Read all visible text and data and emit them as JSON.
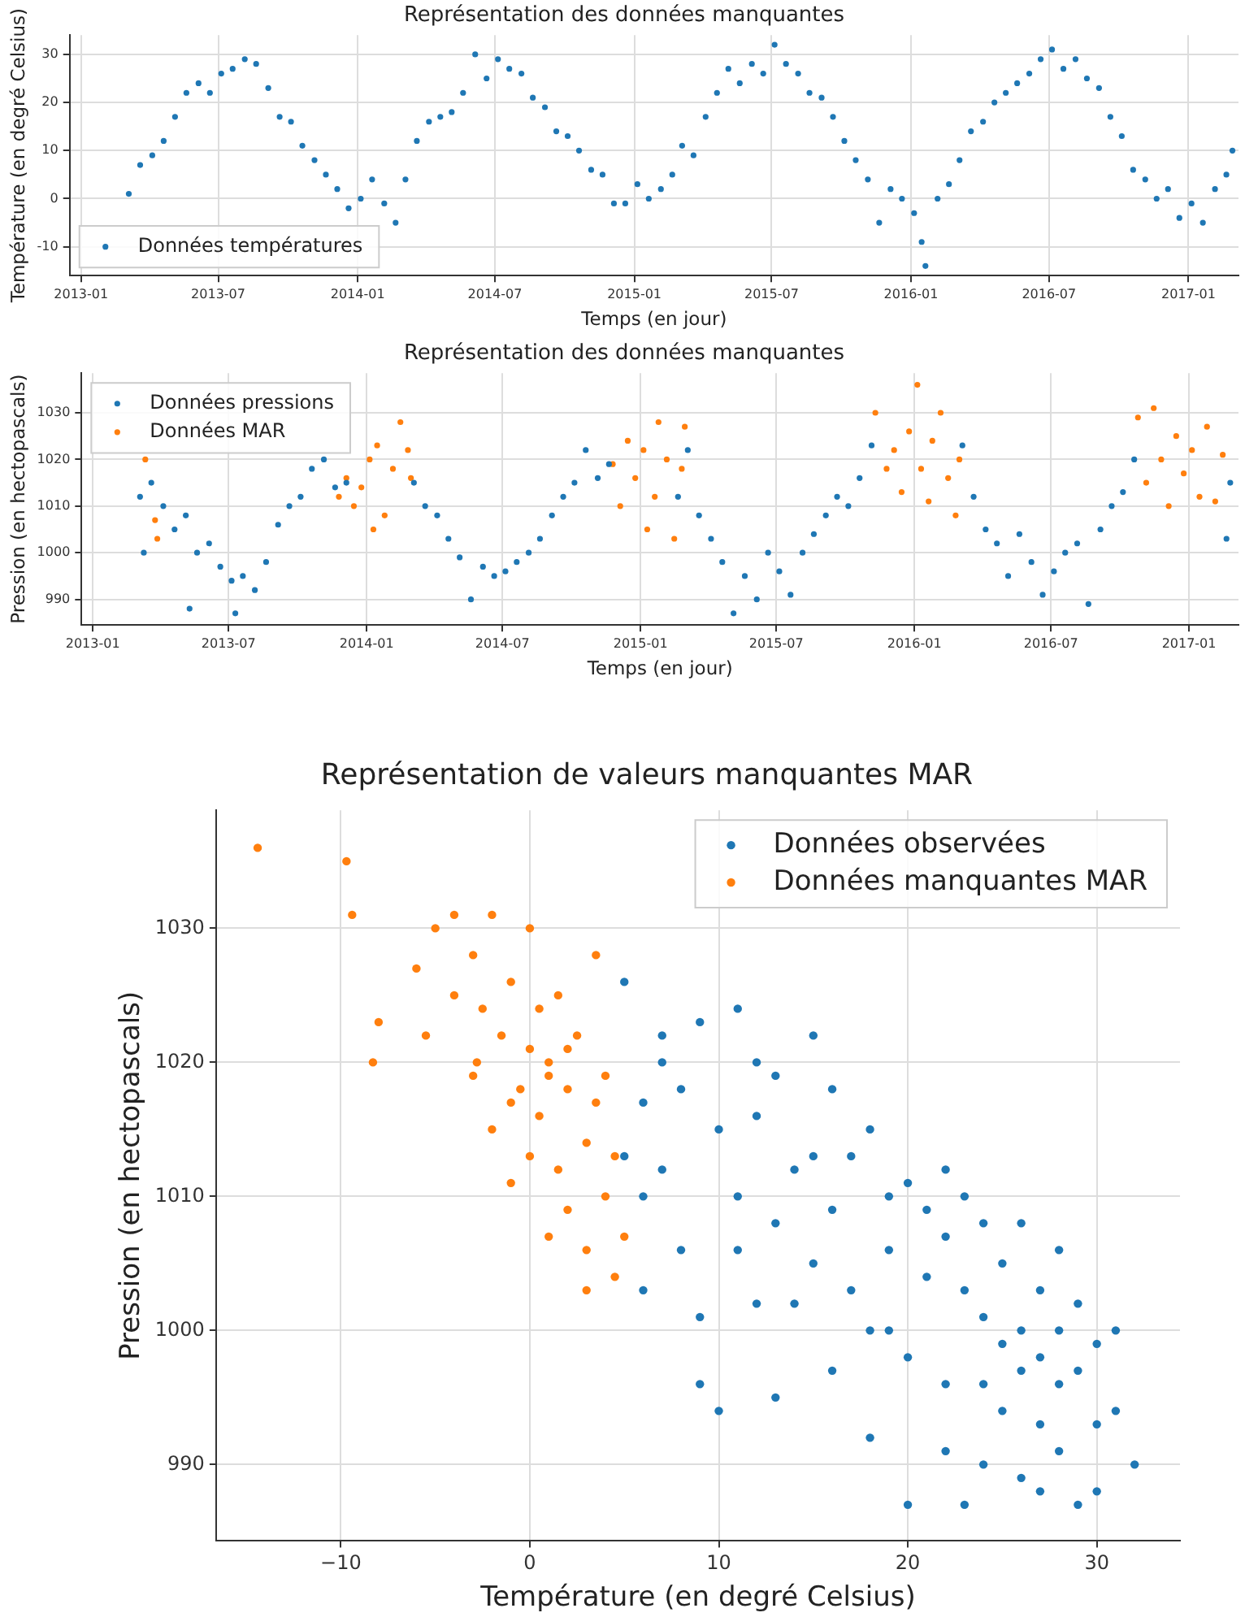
{
  "chart_data": [
    {
      "type": "scatter",
      "title": "Représentation des données manquantes",
      "xlabel": "Temps (en jour)",
      "ylabel": "Température (en degré Celsius)",
      "xlim": [
        "2012-12-17",
        "2017-03-08"
      ],
      "xticks": [
        "2013-01",
        "2013-07",
        "2014-01",
        "2014-07",
        "2015-01",
        "2015-07",
        "2016-01",
        "2016-07",
        "2017-01"
      ],
      "ylim": [
        -16,
        34
      ],
      "yticks": [
        -10,
        0,
        10,
        20,
        30
      ],
      "grid": true,
      "legend": "bottom left",
      "marker": "circle",
      "series": [
        {
          "name": "Données températures",
          "color": "#1f77b4",
          "x": [
            "2013-03-05",
            "2013-03-20",
            "2013-04-05",
            "2013-04-20",
            "2013-05-05",
            "2013-05-20",
            "2013-06-05",
            "2013-06-20",
            "2013-07-05",
            "2013-07-20",
            "2013-08-05",
            "2013-08-20",
            "2013-09-05",
            "2013-09-20",
            "2013-10-05",
            "2013-10-20",
            "2013-11-05",
            "2013-11-20",
            "2013-12-05",
            "2013-12-20",
            "2014-01-05",
            "2014-01-20",
            "2014-02-05",
            "2014-02-20",
            "2014-03-05",
            "2014-03-20",
            "2014-04-05",
            "2014-04-20",
            "2014-05-05",
            "2014-05-20",
            "2014-06-05",
            "2014-06-20",
            "2014-07-05",
            "2014-07-20",
            "2014-08-05",
            "2014-08-20",
            "2014-09-05",
            "2014-09-20",
            "2014-10-05",
            "2014-10-20",
            "2014-11-05",
            "2014-11-20",
            "2014-12-05",
            "2014-12-20",
            "2015-01-05",
            "2015-01-20",
            "2015-02-05",
            "2015-02-20",
            "2015-03-05",
            "2015-03-20",
            "2015-04-05",
            "2015-04-20",
            "2015-05-05",
            "2015-05-20",
            "2015-06-05",
            "2015-06-20",
            "2015-07-05",
            "2015-07-20",
            "2015-08-05",
            "2015-08-20",
            "2015-09-05",
            "2015-09-20",
            "2015-10-05",
            "2015-10-20",
            "2015-11-05",
            "2015-11-20",
            "2015-12-05",
            "2015-12-20",
            "2016-01-05",
            "2016-01-15",
            "2016-01-20",
            "2016-02-05",
            "2016-02-20",
            "2016-03-05",
            "2016-03-20",
            "2016-04-05",
            "2016-04-20",
            "2016-05-05",
            "2016-05-20",
            "2016-06-05",
            "2016-06-20",
            "2016-07-05",
            "2016-07-20",
            "2016-08-05",
            "2016-08-20",
            "2016-09-05",
            "2016-09-20",
            "2016-10-05",
            "2016-10-20",
            "2016-11-05",
            "2016-11-20",
            "2016-12-05",
            "2016-12-20",
            "2017-01-05",
            "2017-01-20",
            "2017-02-05",
            "2017-02-20",
            "2017-02-28"
          ],
          "values": [
            1,
            7,
            9,
            12,
            17,
            22,
            24,
            22,
            26,
            27,
            29,
            28,
            23,
            17,
            16,
            11,
            8,
            5,
            2,
            -2,
            0,
            4,
            -1,
            -5,
            4,
            12,
            16,
            17,
            18,
            22,
            30,
            25,
            29,
            27,
            26,
            21,
            19,
            14,
            13,
            10,
            6,
            5,
            -1,
            -1,
            3,
            0,
            2,
            5,
            11,
            9,
            17,
            22,
            27,
            24,
            28,
            26,
            32,
            28,
            26,
            22,
            21,
            17,
            12,
            8,
            4,
            -5,
            2,
            0,
            -3,
            -9,
            -14,
            0,
            3,
            8,
            14,
            16,
            20,
            22,
            24,
            26,
            29,
            31,
            27,
            29,
            25,
            23,
            17,
            13,
            6,
            4,
            0,
            2,
            -4,
            -1,
            -5,
            2,
            5,
            10
          ]
        }
      ]
    },
    {
      "type": "scatter",
      "title": "Représentation des données manquantes",
      "xlabel": "Temps (en jour)",
      "ylabel": "Pression (en hectopascals)",
      "xlim": [
        "2012-12-17",
        "2017-03-08"
      ],
      "xticks": [
        "2013-01",
        "2013-07",
        "2014-01",
        "2014-07",
        "2015-01",
        "2015-07",
        "2016-01",
        "2016-07",
        "2017-01"
      ],
      "ylim": [
        984.5,
        1038.5
      ],
      "yticks": [
        990,
        1000,
        1010,
        1020,
        1030
      ],
      "grid": true,
      "legend": "top left",
      "marker": "circle",
      "series": [
        {
          "name": "Données pressions",
          "color": "#1f77b4",
          "x": [
            "2013-03-05",
            "2013-03-10",
            "2013-03-20",
            "2013-04-05",
            "2013-04-20",
            "2013-05-05",
            "2013-05-10",
            "2013-05-20",
            "2013-06-05",
            "2013-06-20",
            "2013-07-05",
            "2013-07-10",
            "2013-07-20",
            "2013-08-05",
            "2013-08-20",
            "2013-09-05",
            "2013-09-20",
            "2013-10-05",
            "2013-10-20",
            "2013-11-05",
            "2013-11-20",
            "2013-12-05",
            "2014-03-05",
            "2014-03-20",
            "2014-04-05",
            "2014-04-20",
            "2014-05-05",
            "2014-05-20",
            "2014-06-05",
            "2014-06-20",
            "2014-07-05",
            "2014-07-20",
            "2014-08-05",
            "2014-08-20",
            "2014-09-05",
            "2014-09-20",
            "2014-10-05",
            "2014-10-20",
            "2014-11-05",
            "2014-11-20",
            "2015-02-20",
            "2015-03-05",
            "2015-03-20",
            "2015-04-05",
            "2015-04-20",
            "2015-05-05",
            "2015-05-20",
            "2015-06-05",
            "2015-06-20",
            "2015-07-05",
            "2015-07-20",
            "2015-08-05",
            "2015-08-20",
            "2015-09-05",
            "2015-09-20",
            "2015-10-05",
            "2015-10-20",
            "2015-11-05",
            "2016-03-05",
            "2016-03-20",
            "2016-04-05",
            "2016-04-20",
            "2016-05-05",
            "2016-05-20",
            "2016-06-05",
            "2016-06-20",
            "2016-07-05",
            "2016-07-20",
            "2016-08-05",
            "2016-08-20",
            "2016-09-05",
            "2016-09-20",
            "2016-10-05",
            "2016-10-20",
            "2017-02-20",
            "2017-02-25"
          ],
          "values": [
            1012,
            1000,
            1015,
            1010,
            1005,
            1008,
            988,
            1000,
            1002,
            997,
            994,
            987,
            995,
            992,
            998,
            1006,
            1010,
            1012,
            1018,
            1020,
            1014,
            1015,
            1015,
            1010,
            1008,
            1003,
            999,
            990,
            997,
            995,
            996,
            998,
            1000,
            1003,
            1008,
            1012,
            1015,
            1022,
            1016,
            1019,
            1012,
            1022,
            1008,
            1003,
            998,
            987,
            995,
            990,
            1000,
            996,
            991,
            1000,
            1004,
            1008,
            1012,
            1010,
            1016,
            1023,
            1023,
            1012,
            1005,
            1002,
            995,
            1004,
            998,
            991,
            996,
            1000,
            1002,
            989,
            1005,
            1010,
            1013,
            1020,
            1003,
            1015
          ]
        },
        {
          "name": "Données MAR",
          "color": "#ff7f0e",
          "x": [
            "2013-03-12",
            "2013-03-25",
            "2013-03-28",
            "2013-11-25",
            "2013-12-05",
            "2013-12-15",
            "2013-12-25",
            "2014-01-05",
            "2014-01-10",
            "2014-01-15",
            "2014-01-25",
            "2014-02-05",
            "2014-02-15",
            "2014-02-25",
            "2014-03-01",
            "2014-11-25",
            "2014-12-05",
            "2014-12-15",
            "2014-12-25",
            "2015-01-05",
            "2015-01-10",
            "2015-01-20",
            "2015-01-25",
            "2015-02-05",
            "2015-02-15",
            "2015-02-25",
            "2015-03-01",
            "2015-11-10",
            "2015-11-25",
            "2015-12-05",
            "2015-12-15",
            "2015-12-25",
            "2016-01-05",
            "2016-01-10",
            "2016-01-20",
            "2016-01-25",
            "2016-02-05",
            "2016-02-15",
            "2016-02-25",
            "2016-03-01",
            "2016-10-25",
            "2016-11-05",
            "2016-11-15",
            "2016-11-25",
            "2016-12-05",
            "2016-12-15",
            "2016-12-25",
            "2017-01-05",
            "2017-01-15",
            "2017-01-25",
            "2017-02-05",
            "2017-02-15"
          ],
          "values": [
            1020,
            1007,
            1003,
            1012,
            1016,
            1010,
            1014,
            1020,
            1005,
            1023,
            1008,
            1018,
            1028,
            1022,
            1016,
            1019,
            1010,
            1024,
            1016,
            1022,
            1005,
            1012,
            1028,
            1020,
            1003,
            1018,
            1027,
            1030,
            1018,
            1022,
            1013,
            1026,
            1036,
            1018,
            1011,
            1024,
            1030,
            1016,
            1008,
            1020,
            1029,
            1015,
            1031,
            1020,
            1010,
            1025,
            1017,
            1022,
            1012,
            1027,
            1011,
            1021
          ]
        }
      ]
    },
    {
      "type": "scatter",
      "title": "Représentation de valeurs manquantes MAR",
      "xlabel": "Température (en degré Celsius)",
      "ylabel": "Pression (en hectopascals)",
      "xlim": [
        -16.6,
        34.4
      ],
      "xticks": [
        {
          "value": -10,
          "label": "−10"
        },
        0,
        10,
        20,
        30
      ],
      "ylim": [
        984.3,
        1038.8
      ],
      "yticks": [
        990,
        1000,
        1010,
        1020,
        1030
      ],
      "grid": true,
      "legend": "top right",
      "marker": "circle",
      "series": [
        {
          "name": "Données observées",
          "color": "#1f77b4",
          "x": [
            5,
            5,
            6,
            6,
            7,
            7,
            8,
            8,
            9,
            9,
            10,
            10,
            11,
            11,
            12,
            12,
            13,
            13,
            13,
            14,
            15,
            15,
            16,
            16,
            17,
            17,
            18,
            18,
            18,
            19,
            19,
            20,
            20,
            20,
            21,
            21,
            22,
            22,
            22,
            23,
            23,
            23,
            24,
            24,
            24,
            25,
            25,
            25,
            26,
            26,
            26,
            27,
            27,
            27,
            28,
            28,
            28,
            29,
            29,
            29,
            30,
            30,
            31,
            31,
            32,
            26,
            28,
            22,
            24,
            19,
            15,
            11,
            9,
            14,
            16,
            6,
            7,
            12,
            27,
            30
          ],
          "values": [
            1026,
            1013,
            1017,
            1003,
            1022,
            1012,
            1018,
            1006,
            1001,
            1023,
            1015,
            994,
            1024,
            1010,
            1016,
            1002,
            1019,
            1008,
            995,
            1012,
            1022,
            1005,
            1018,
            1009,
            1013,
            1003,
            1015,
            1000,
            992,
            1010,
            1006,
            1011,
            998,
            987,
            1004,
            1009,
            1007,
            996,
            991,
            1003,
            1010,
            987,
            1001,
            996,
            990,
            1005,
            999,
            994,
            1000,
            997,
            989,
            1003,
            998,
            993,
            1000,
            996,
            991,
            1002,
            997,
            987,
            999,
            993,
            1000,
            994,
            990,
            1008,
            1006,
            1012,
            1008,
            1000,
            1013,
            1006,
            996,
            1002,
            997,
            1010,
            1020,
            1020,
            988,
            988
          ]
        },
        {
          "name": "Données manquantes MAR",
          "color": "#ff7f0e",
          "x": [
            -14.4,
            -9.7,
            -9.4,
            -8,
            -8.3,
            -6,
            -5,
            -5.5,
            -4,
            -4,
            -3,
            -3,
            -2.5,
            -2,
            -2,
            -1.5,
            -1,
            -1,
            -0.5,
            0,
            0,
            0,
            0.5,
            0.5,
            1,
            1,
            1.5,
            1.5,
            2,
            2,
            2.5,
            3,
            3,
            3.5,
            3.5,
            4,
            4,
            4.5,
            4.5,
            5,
            -1,
            1,
            -2.8,
            2,
            3
          ],
          "values": [
            1036,
            1035,
            1031,
            1023,
            1020,
            1027,
            1030,
            1022,
            1031,
            1025,
            1028,
            1019,
            1024,
            1031,
            1015,
            1022,
            1011,
            1026,
            1018,
            1030,
            1021,
            1013,
            1024,
            1016,
            1007,
            1020,
            1025,
            1012,
            1018,
            1009,
            1022,
            1014,
            1006,
            1028,
            1017,
            1010,
            1019,
            1004,
            1013,
            1007,
            1017,
            1019,
            1020,
            1021,
            1003
          ]
        }
      ]
    }
  ]
}
